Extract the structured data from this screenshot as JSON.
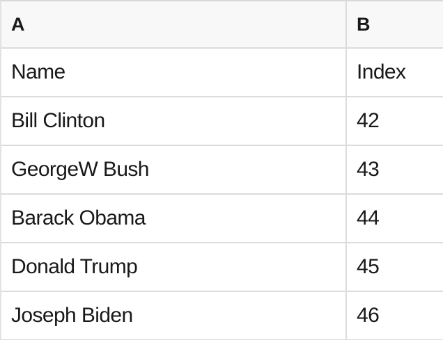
{
  "table": {
    "header_row": [
      "A",
      "B"
    ],
    "rows": [
      [
        "Name",
        "Index"
      ],
      [
        "Bill Clinton",
        "42"
      ],
      [
        "GeorgeW Bush",
        "43"
      ],
      [
        "Barack Obama",
        "44"
      ],
      [
        "Donald Trump",
        "45"
      ],
      [
        "Joseph Biden",
        "46"
      ]
    ]
  },
  "colors": {
    "grid_line": "#dcdcdc",
    "header_background": "#f8f8f8",
    "row_background": "#ffffff",
    "text": "#191919"
  }
}
